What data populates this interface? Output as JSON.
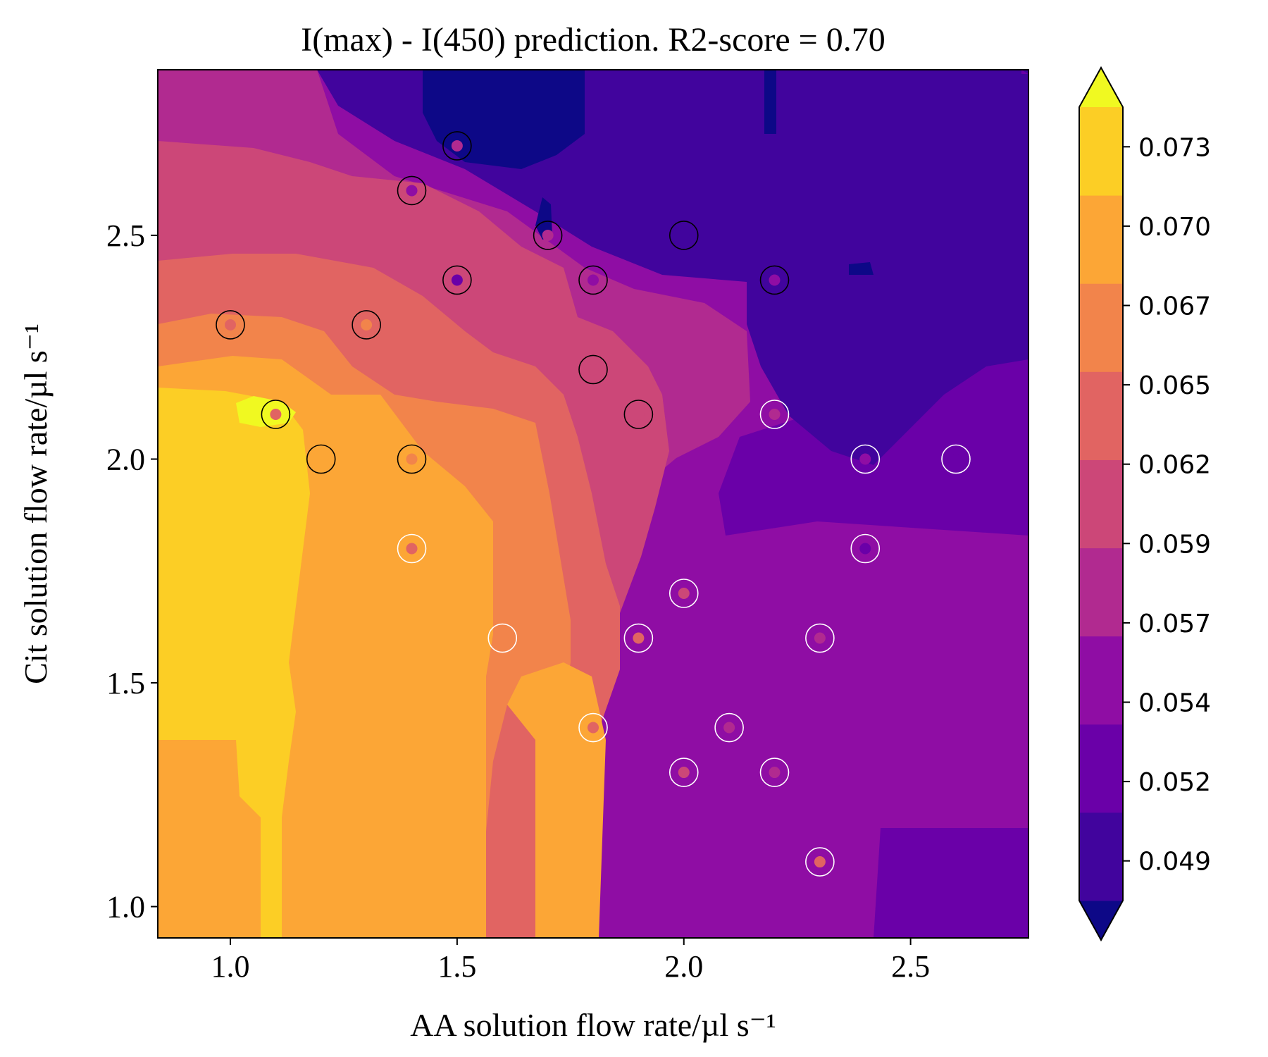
{
  "chart_data": {
    "type": "heatmap",
    "title": "I(max) - I(450) prediction. R2-score = 0.70",
    "xlabel": "AA solution flow rate/µl s⁻¹",
    "ylabel": "Cit solution flow rate/µl s⁻¹",
    "xlim": [
      0.84,
      2.76
    ],
    "ylim": [
      0.93,
      2.87
    ],
    "xticks": [
      1.0,
      1.5,
      2.0,
      2.5
    ],
    "xtick_labels": [
      "1.0",
      "1.5",
      "2.0",
      "2.5"
    ],
    "yticks": [
      1.0,
      1.5,
      2.0,
      2.5
    ],
    "ytick_labels": [
      "1.0",
      "1.5",
      "2.0",
      "2.5"
    ],
    "colormap": "plasma",
    "colorbar": {
      "levels": [
        0.049,
        0.052,
        0.054,
        0.057,
        0.059,
        0.062,
        0.065,
        0.067,
        0.07,
        0.073
      ],
      "tick_labels": [
        "0.049",
        "0.052",
        "0.054",
        "0.057",
        "0.059",
        "0.062",
        "0.065",
        "0.067",
        "0.070",
        "0.073"
      ],
      "band_colors": [
        "#0d0887",
        "#41049d",
        "#6a00a8",
        "#8f0da4",
        "#b12a90",
        "#cc4778",
        "#e16462",
        "#f2844b",
        "#fca636",
        "#fcce25",
        "#f0f921"
      ],
      "extend": "both"
    },
    "points": [
      {
        "x": 1.0,
        "y": 2.3,
        "ring": "black",
        "color": "#e16462"
      },
      {
        "x": 1.1,
        "y": 2.1,
        "ring": "black",
        "color": "#e16462"
      },
      {
        "x": 1.2,
        "y": 2.0,
        "ring": "black",
        "color": "#fca636"
      },
      {
        "x": 1.3,
        "y": 2.3,
        "ring": "black",
        "color": "#f2844b"
      },
      {
        "x": 1.4,
        "y": 2.6,
        "ring": "black",
        "color": "#8f0da4"
      },
      {
        "x": 1.4,
        "y": 2.0,
        "ring": "black",
        "color": "#f2844b"
      },
      {
        "x": 1.5,
        "y": 2.7,
        "ring": "black",
        "color": "#b12a90"
      },
      {
        "x": 1.5,
        "y": 2.4,
        "ring": "black",
        "color": "#6a00a8"
      },
      {
        "x": 1.7,
        "y": 2.5,
        "ring": "black",
        "color": "#b12a90"
      },
      {
        "x": 1.8,
        "y": 2.4,
        "ring": "black",
        "color": "#8f0da4"
      },
      {
        "x": 1.8,
        "y": 2.2,
        "ring": "black",
        "color": "#cc4778"
      },
      {
        "x": 1.9,
        "y": 2.1,
        "ring": "black",
        "color": "#cc4778"
      },
      {
        "x": 2.0,
        "y": 2.5,
        "ring": "black",
        "color": "#41049d"
      },
      {
        "x": 2.2,
        "y": 2.4,
        "ring": "black",
        "color": "#8f0da4"
      },
      {
        "x": 2.2,
        "y": 2.1,
        "ring": "white",
        "color": "#b12a90"
      },
      {
        "x": 2.4,
        "y": 2.0,
        "ring": "white",
        "color": "#8f0da4"
      },
      {
        "x": 2.6,
        "y": 2.0,
        "ring": "white",
        "color": "#6a00a8"
      },
      {
        "x": 2.4,
        "y": 1.8,
        "ring": "white",
        "color": "#6a00a8"
      },
      {
        "x": 1.4,
        "y": 1.8,
        "ring": "white",
        "color": "#e16462"
      },
      {
        "x": 2.0,
        "y": 1.7,
        "ring": "white",
        "color": "#cc4778"
      },
      {
        "x": 1.6,
        "y": 1.6,
        "ring": "white",
        "color": "#f2844b"
      },
      {
        "x": 1.9,
        "y": 1.6,
        "ring": "white",
        "color": "#e16462"
      },
      {
        "x": 2.3,
        "y": 1.6,
        "ring": "white",
        "color": "#b12a90"
      },
      {
        "x": 1.8,
        "y": 1.4,
        "ring": "white",
        "color": "#e16462"
      },
      {
        "x": 2.1,
        "y": 1.4,
        "ring": "white",
        "color": "#b12a90"
      },
      {
        "x": 2.0,
        "y": 1.3,
        "ring": "white",
        "color": "#cc4778"
      },
      {
        "x": 2.2,
        "y": 1.3,
        "ring": "white",
        "color": "#b12a90"
      },
      {
        "x": 2.3,
        "y": 1.1,
        "ring": "white",
        "color": "#e16462"
      }
    ]
  }
}
